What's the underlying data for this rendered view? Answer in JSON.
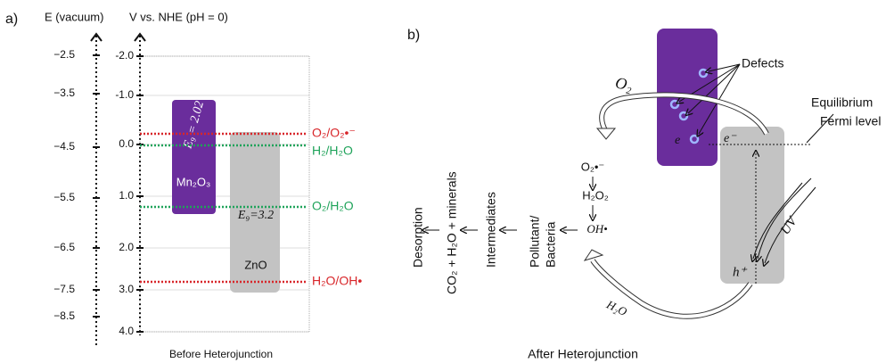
{
  "panel_a": {
    "label": "a)",
    "left_axis_title": "E (vacuum)",
    "right_axis_title": "V vs. NHE (pH = 0)",
    "left_ticks": [
      "−2.5",
      "−3.5",
      "−4.5",
      "−5.5",
      "−6.5",
      "−7.5",
      "−8.5"
    ],
    "right_ticks": [
      "-2.0",
      "-1.0",
      "0.0",
      "1.0",
      "2.0",
      "3.0",
      "4.0"
    ],
    "mn2o3": {
      "name": "Mn₂O₃",
      "gap": "E₉ = 2.02"
    },
    "zno": {
      "name": "ZnO",
      "gap": "E₉=3.2"
    },
    "levels": [
      "O₂/O₂•⁻",
      "H₂/H₂O",
      "O₂/H₂O",
      "H₂O/OH•"
    ],
    "caption": "Before Heterojunction"
  },
  "panel_b": {
    "label": "b)",
    "o2": "O₂",
    "defects": "Defects",
    "fermi": [
      "Equilibrium",
      "Fermi level"
    ],
    "e_left": "e",
    "e_right": "e⁻",
    "uv": "UV",
    "hole": "h⁺",
    "h2o": "H₂O",
    "species": [
      "O₂•⁻",
      "H₂O₂",
      "OH•"
    ],
    "steps": [
      "Pollutant/",
      "Bacteria",
      "Intermediates",
      "CO₂ + H₂O + minerals",
      "Desorption"
    ],
    "caption": "After Heterojunction"
  }
}
